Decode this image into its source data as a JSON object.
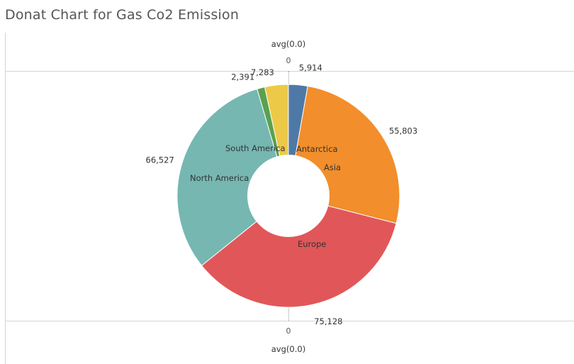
{
  "title": "Donat Chart for Gas Co2 Emission",
  "axis": {
    "top_label": "avg(0.0)",
    "top_tick": "0",
    "bottom_tick": "0",
    "bottom_label": "avg(0.0)"
  },
  "chart_data": {
    "type": "pie",
    "donut": true,
    "title": "Donat Chart for Gas Co2 Emission",
    "slices": [
      {
        "category": "Antarctica",
        "value": 5914,
        "value_label": "5,914",
        "color": "#4e79a7"
      },
      {
        "category": "Asia",
        "value": 55803,
        "value_label": "55,803",
        "color": "#f28e2b"
      },
      {
        "category": "Europe",
        "value": 75128,
        "value_label": "75,128",
        "color": "#e15759"
      },
      {
        "category": "North America",
        "value": 66527,
        "value_label": "66,527",
        "color": "#76b7b2"
      },
      {
        "category": "",
        "value": 2391,
        "value_label": "2,391",
        "color": "#59a14f"
      },
      {
        "category": "South America",
        "value": 7283,
        "value_label": "7,283",
        "color": "#edc948"
      }
    ]
  }
}
